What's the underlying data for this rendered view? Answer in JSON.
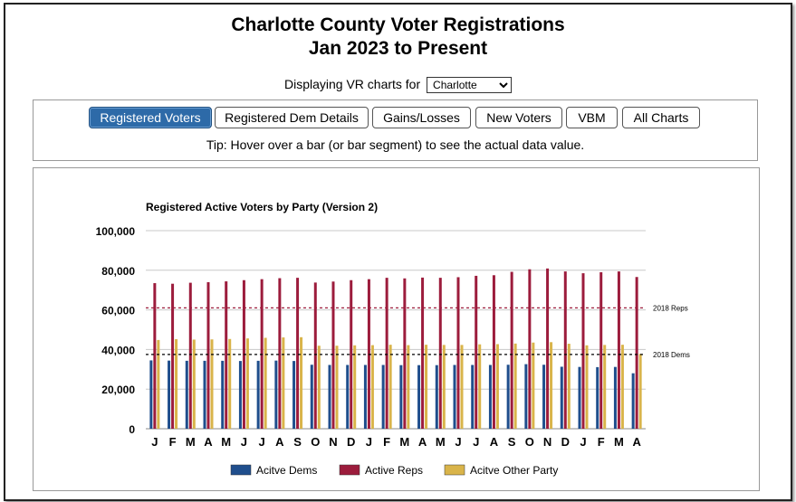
{
  "page": {
    "title_line1": "Charlotte County Voter Registrations",
    "title_line2": "Jan 2023 to Present",
    "selector_label": "Displaying VR charts for",
    "selector_value": "Charlotte",
    "tip": "Tip: Hover over a bar (or bar segment) to see the actual data value."
  },
  "tabs": [
    {
      "label": "Registered Voters",
      "active": true
    },
    {
      "label": "Registered Dem Details",
      "active": false
    },
    {
      "label": "Gains/Losses",
      "active": false
    },
    {
      "label": "New Voters",
      "active": false
    },
    {
      "label": "VBM",
      "active": false
    },
    {
      "label": "All Charts",
      "active": false
    }
  ],
  "chart_data": {
    "type": "bar",
    "title": "Registered Active Voters by Party (Version 2)",
    "xlabel": "",
    "ylabel": "",
    "ylim": [
      0,
      100000
    ],
    "yticks": [
      0,
      20000,
      40000,
      60000,
      80000,
      100000
    ],
    "ytick_labels": [
      "0",
      "20,000",
      "40,000",
      "60,000",
      "80,000",
      "100,000"
    ],
    "grid": true,
    "legend_position": "bottom",
    "categories": [
      "J",
      "F",
      "M",
      "A",
      "M",
      "J",
      "J",
      "A",
      "S",
      "O",
      "N",
      "D",
      "J",
      "F",
      "M",
      "A",
      "M",
      "J",
      "J",
      "A",
      "S",
      "O",
      "N",
      "D",
      "J",
      "F",
      "M",
      "A"
    ],
    "series": [
      {
        "name": "Acitve Dems",
        "color": "#1f4e8c",
        "values": [
          34500,
          34400,
          34300,
          34300,
          34300,
          34200,
          34300,
          34400,
          34200,
          32300,
          32200,
          32200,
          32200,
          32200,
          32100,
          32100,
          32100,
          32200,
          32200,
          32200,
          32300,
          32600,
          32300,
          31300,
          31200,
          31100,
          31200,
          28000
        ]
      },
      {
        "name": "Active Reps",
        "color": "#9c1c3c",
        "values": [
          73500,
          73200,
          73700,
          74000,
          74400,
          75000,
          75500,
          76000,
          76200,
          73800,
          74300,
          75000,
          75500,
          76200,
          75900,
          76300,
          76200,
          76500,
          77200,
          77500,
          79200,
          80500,
          80900,
          79400,
          78500,
          79000,
          79400,
          76600
        ]
      },
      {
        "name": "Acitve Other Party",
        "color": "#d9b44a",
        "values": [
          44800,
          45200,
          45000,
          45100,
          45300,
          45600,
          45900,
          46100,
          46200,
          41900,
          41900,
          42100,
          42200,
          42400,
          42200,
          42400,
          42300,
          42300,
          42600,
          42700,
          43000,
          43500,
          43700,
          42900,
          42100,
          42300,
          42400,
          37800
        ]
      }
    ],
    "reference_lines": [
      {
        "label": "2018 Reps",
        "value": 61000,
        "color": "#9c1c3c"
      },
      {
        "label": "2018 Dems",
        "value": 37500,
        "color": "#000000"
      }
    ]
  }
}
